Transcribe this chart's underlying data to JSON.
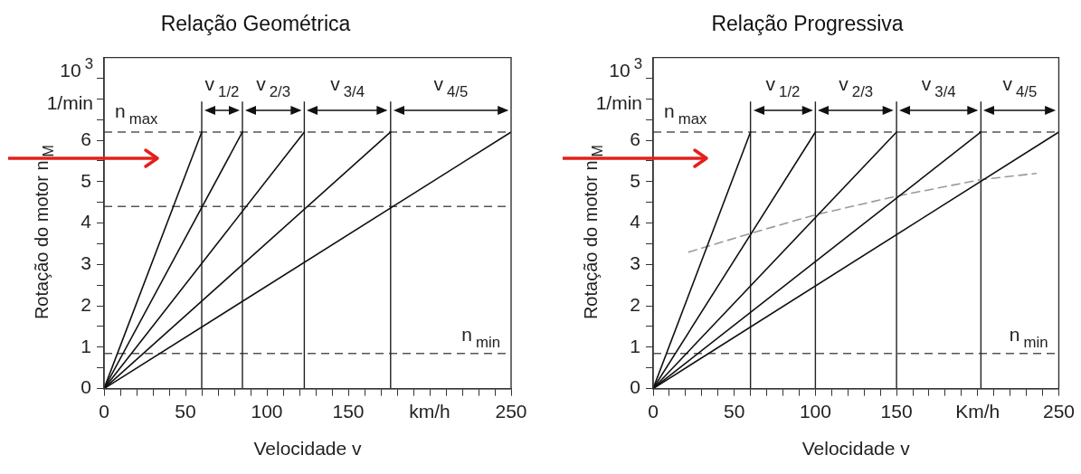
{
  "chart_data": [
    {
      "type": "line",
      "title": "Relação Geométrica",
      "xlabel": "Velocidade v",
      "ylabel": "Rotação do motor n$_{M}$",
      "marker": "none",
      "xlim": [
        0,
        250
      ],
      "ylim": [
        0,
        8
      ],
      "xticks": [
        0,
        {
          "value": 10,
          "label": null
        },
        {
          "value": 20,
          "label": null
        },
        {
          "value": 30,
          "label": null
        },
        {
          "value": 40,
          "label": null
        },
        50,
        {
          "value": 60,
          "label": null
        },
        {
          "value": 70,
          "label": null
        },
        {
          "value": 80,
          "label": null
        },
        {
          "value": 90,
          "label": null
        },
        100,
        {
          "value": 110,
          "label": null
        },
        {
          "value": 120,
          "label": null
        },
        {
          "value": 130,
          "label": null
        },
        {
          "value": 140,
          "label": null
        },
        150,
        {
          "value": 160,
          "label": null
        },
        {
          "value": 170,
          "label": null
        },
        {
          "value": 180,
          "label": null
        },
        {
          "value": 190,
          "label": null
        },
        {
          "value": 200,
          "label": "km/h"
        },
        {
          "value": 210,
          "label": null
        },
        {
          "value": 220,
          "label": null
        },
        {
          "value": 230,
          "label": null
        },
        {
          "value": 240,
          "label": null
        },
        250
      ],
      "yticks": [
        0,
        {
          "value": 0.5,
          "label": null
        },
        1,
        {
          "value": 1.5,
          "label": null
        },
        2,
        {
          "value": 2.5,
          "label": null
        },
        3,
        {
          "value": 3.5,
          "label": null
        },
        4,
        {
          "value": 4.5,
          "label": null
        },
        5,
        {
          "value": 5.5,
          "label": null
        },
        6,
        {
          "value": 6.5,
          "label": null
        },
        {
          "value": 7,
          "label": null
        },
        {
          "value": 7.5,
          "label": null
        }
      ],
      "series": [
        {
          "color": "#111111",
          "x": [
            0,
            60
          ],
          "values": [
            0,
            6.2
          ]
        },
        {
          "color": "#111111",
          "x": [
            0,
            85
          ],
          "values": [
            0,
            6.2
          ]
        },
        {
          "color": "#111111",
          "x": [
            0,
            123
          ],
          "values": [
            0,
            6.2
          ]
        },
        {
          "color": "#111111",
          "x": [
            0,
            176
          ],
          "values": [
            0,
            6.2
          ]
        },
        {
          "color": "#111111",
          "x": [
            0,
            250
          ],
          "values": [
            0,
            6.2
          ]
        }
      ],
      "ref_lines": [
        {
          "axis": "y",
          "value": 6.2,
          "label": "n$_{max}$",
          "line_style": "dashed",
          "color": "#555555"
        },
        {
          "axis": "y",
          "value": 4.4,
          "line_style": "dashed",
          "color": "#555555"
        },
        {
          "axis": "y",
          "value": 0.85,
          "label": "n$_{min}$",
          "line_style": "dashed",
          "color": "#555555"
        },
        {
          "axis": "x",
          "value": 60,
          "color": "#222222"
        },
        {
          "axis": "x",
          "value": 85,
          "color": "#222222"
        },
        {
          "axis": "x",
          "value": 123,
          "color": "#222222"
        },
        {
          "axis": "x",
          "value": 176,
          "color": "#222222"
        }
      ],
      "annotations": [
        "10$^{3}$",
        "1/min",
        "v$_{1/2}$",
        "v$_{2/3}$",
        "v$_{3/4}$",
        "v$_{4/5}$"
      ]
    },
    {
      "type": "line",
      "title": "Relação Progressiva",
      "xlabel": "Velocidade v",
      "ylabel": "Rotação do motor n$_{M}$",
      "marker": "none",
      "xlim": [
        0,
        250
      ],
      "ylim": [
        0,
        8
      ],
      "xticks": [
        0,
        {
          "value": 10,
          "label": null
        },
        {
          "value": 20,
          "label": null
        },
        {
          "value": 30,
          "label": null
        },
        {
          "value": 40,
          "label": null
        },
        50,
        {
          "value": 60,
          "label": null
        },
        {
          "value": 70,
          "label": null
        },
        {
          "value": 80,
          "label": null
        },
        {
          "value": 90,
          "label": null
        },
        100,
        {
          "value": 110,
          "label": null
        },
        {
          "value": 120,
          "label": null
        },
        {
          "value": 130,
          "label": null
        },
        {
          "value": 140,
          "label": null
        },
        150,
        {
          "value": 160,
          "label": null
        },
        {
          "value": 170,
          "label": null
        },
        {
          "value": 180,
          "label": null
        },
        {
          "value": 190,
          "label": null
        },
        {
          "value": 200,
          "label": "Km/h"
        },
        {
          "value": 210,
          "label": null
        },
        {
          "value": 220,
          "label": null
        },
        {
          "value": 230,
          "label": null
        },
        {
          "value": 240,
          "label": null
        },
        250
      ],
      "yticks": [
        0,
        {
          "value": 0.5,
          "label": null
        },
        1,
        {
          "value": 1.5,
          "label": null
        },
        2,
        {
          "value": 2.5,
          "label": null
        },
        3,
        {
          "value": 3.5,
          "label": null
        },
        4,
        {
          "value": 4.5,
          "label": null
        },
        5,
        {
          "value": 5.5,
          "label": null
        },
        6,
        {
          "value": 6.5,
          "label": null
        },
        {
          "value": 7,
          "label": null
        },
        {
          "value": 7.5,
          "label": null
        }
      ],
      "series": [
        {
          "color": "#111111",
          "x": [
            0,
            60
          ],
          "values": [
            0,
            6.2
          ]
        },
        {
          "color": "#111111",
          "x": [
            0,
            100
          ],
          "values": [
            0,
            6.2
          ]
        },
        {
          "color": "#111111",
          "x": [
            0,
            150
          ],
          "values": [
            0,
            6.2
          ]
        },
        {
          "color": "#111111",
          "x": [
            0,
            202
          ],
          "values": [
            0,
            6.2
          ]
        },
        {
          "color": "#111111",
          "x": [
            0,
            250
          ],
          "values": [
            0,
            6.2
          ]
        },
        {
          "color": "#999999",
          "line_style": "dashed",
          "x": [
            22,
            60,
            100,
            150,
            202,
            236
          ],
          "values": [
            3.3,
            3.75,
            4.2,
            4.65,
            5.05,
            5.2
          ]
        }
      ],
      "ref_lines": [
        {
          "axis": "y",
          "value": 6.2,
          "label": "n$_{max}$",
          "line_style": "dashed",
          "color": "#555555"
        },
        {
          "axis": "y",
          "value": 0.85,
          "label": "n$_{min}$",
          "line_style": "dashed",
          "color": "#555555"
        },
        {
          "axis": "x",
          "value": 60,
          "color": "#222222"
        },
        {
          "axis": "x",
          "value": 100,
          "color": "#222222"
        },
        {
          "axis": "x",
          "value": 150,
          "color": "#222222"
        },
        {
          "axis": "x",
          "value": 202,
          "color": "#222222"
        }
      ],
      "annotations": [
        "10$^{3}$",
        "1/min",
        "v$_{1/2}$",
        "v$_{2/3}$",
        "v$_{3/4}$",
        "v$_{4/5}$"
      ]
    }
  ]
}
